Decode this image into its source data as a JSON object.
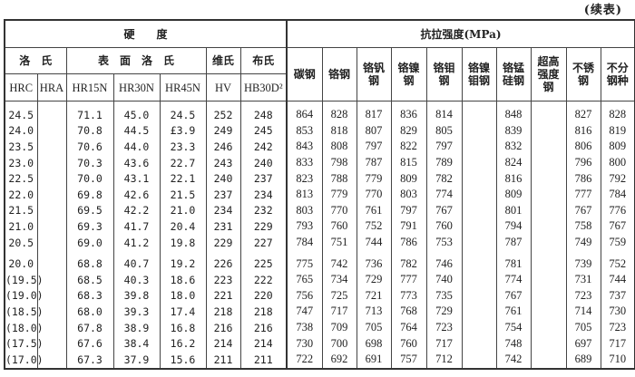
{
  "continued_label": "(续表)",
  "headers": {
    "hardness": "硬　　度",
    "tensile": "抗拉强度(MPa)",
    "rockwell": "洛　氏",
    "superficial": "表　面　洛　氏",
    "vickers": "维氏",
    "brinell": "布氏",
    "codes": [
      "HRC",
      "HRA",
      "HR15N",
      "HR30N",
      "HR45N",
      "HV",
      "HB30D²"
    ],
    "steels": [
      "碳钢",
      "铬钢",
      "铬钒钢",
      "铬镍钢",
      "铬钼钢",
      "铬镍钼钢",
      "铬锰硅钢",
      "超高强度钢",
      "不锈钢",
      "不分钢种"
    ]
  },
  "rows": [
    [
      "24.5",
      "",
      "71.1",
      "45.0",
      "24.5",
      "252",
      "248",
      "864",
      "828",
      "817",
      "836",
      "814",
      "",
      "848",
      "",
      "827",
      "828"
    ],
    [
      "24.0",
      "",
      "70.8",
      "44.5",
      "£3.9",
      "249",
      "245",
      "853",
      "818",
      "807",
      "829",
      "805",
      "",
      "839",
      "",
      "816",
      "819"
    ],
    [
      "23.5",
      "",
      "70.6",
      "44.0",
      "23.3",
      "246",
      "242",
      "843",
      "808",
      "797",
      "822",
      "797",
      "",
      "832",
      "",
      "806",
      "809"
    ],
    [
      "23.0",
      "",
      "70.3",
      "43.6",
      "22.7",
      "243",
      "240",
      "833",
      "798",
      "787",
      "815",
      "789",
      "",
      "824",
      "",
      "796",
      "800"
    ],
    [
      "22.5",
      "",
      "70.0",
      "43.1",
      "22.1",
      "240",
      "237",
      "823",
      "788",
      "779",
      "809",
      "782",
      "",
      "816",
      "",
      "786",
      "792"
    ],
    [
      "22.0",
      "",
      "69.8",
      "42.6",
      "21.5",
      "237",
      "234",
      "813",
      "779",
      "770",
      "803",
      "774",
      "",
      "809",
      "",
      "777",
      "784"
    ],
    [
      "21.5",
      "",
      "69.5",
      "42.2",
      "21.0",
      "234",
      "232",
      "803",
      "770",
      "761",
      "797",
      "767",
      "",
      "801",
      "",
      "767",
      "776"
    ],
    [
      "21.0",
      "",
      "69.3",
      "41.7",
      "20.4",
      "231",
      "229",
      "793",
      "760",
      "752",
      "791",
      "760",
      "",
      "794",
      "",
      "758",
      "767"
    ],
    [
      "20.5",
      "",
      "69.0",
      "41.2",
      "19.8",
      "229",
      "227",
      "784",
      "751",
      "744",
      "786",
      "753",
      "",
      "787",
      "",
      "749",
      "759"
    ],
    [
      "20.0",
      "",
      "68.8",
      "40.7",
      "19.2",
      "226",
      "225",
      "775",
      "742",
      "736",
      "782",
      "746",
      "",
      "781",
      "",
      "739",
      "752"
    ],
    [
      "(19.5)",
      "",
      "68.5",
      "40.3",
      "18.6",
      "223",
      "222",
      "765",
      "734",
      "729",
      "777",
      "740",
      "",
      "774",
      "",
      "731",
      "744"
    ],
    [
      "(19.0)",
      "",
      "68.3",
      "39.8",
      "18.0",
      "221",
      "220",
      "756",
      "725",
      "721",
      "773",
      "735",
      "",
      "767",
      "",
      "723",
      "737"
    ],
    [
      "(18.5)",
      "",
      "68.0",
      "39.3",
      "17.4",
      "218",
      "218",
      "747",
      "717",
      "713",
      "768",
      "729",
      "",
      "761",
      "",
      "714",
      "730"
    ],
    [
      "(18.0)",
      "",
      "67.8",
      "38.9",
      "16.8",
      "216",
      "216",
      "738",
      "709",
      "705",
      "764",
      "723",
      "",
      "754",
      "",
      "705",
      "723"
    ],
    [
      "(17.5)",
      "",
      "67.6",
      "38.4",
      "16.2",
      "214",
      "214",
      "730",
      "700",
      "698",
      "760",
      "717",
      "",
      "748",
      "",
      "697",
      "717"
    ],
    [
      "(17.0)",
      "",
      "67.3",
      "37.9",
      "15.6",
      "211",
      "211",
      "722",
      "692",
      "691",
      "757",
      "712",
      "",
      "742",
      "",
      "689",
      "710"
    ]
  ]
}
